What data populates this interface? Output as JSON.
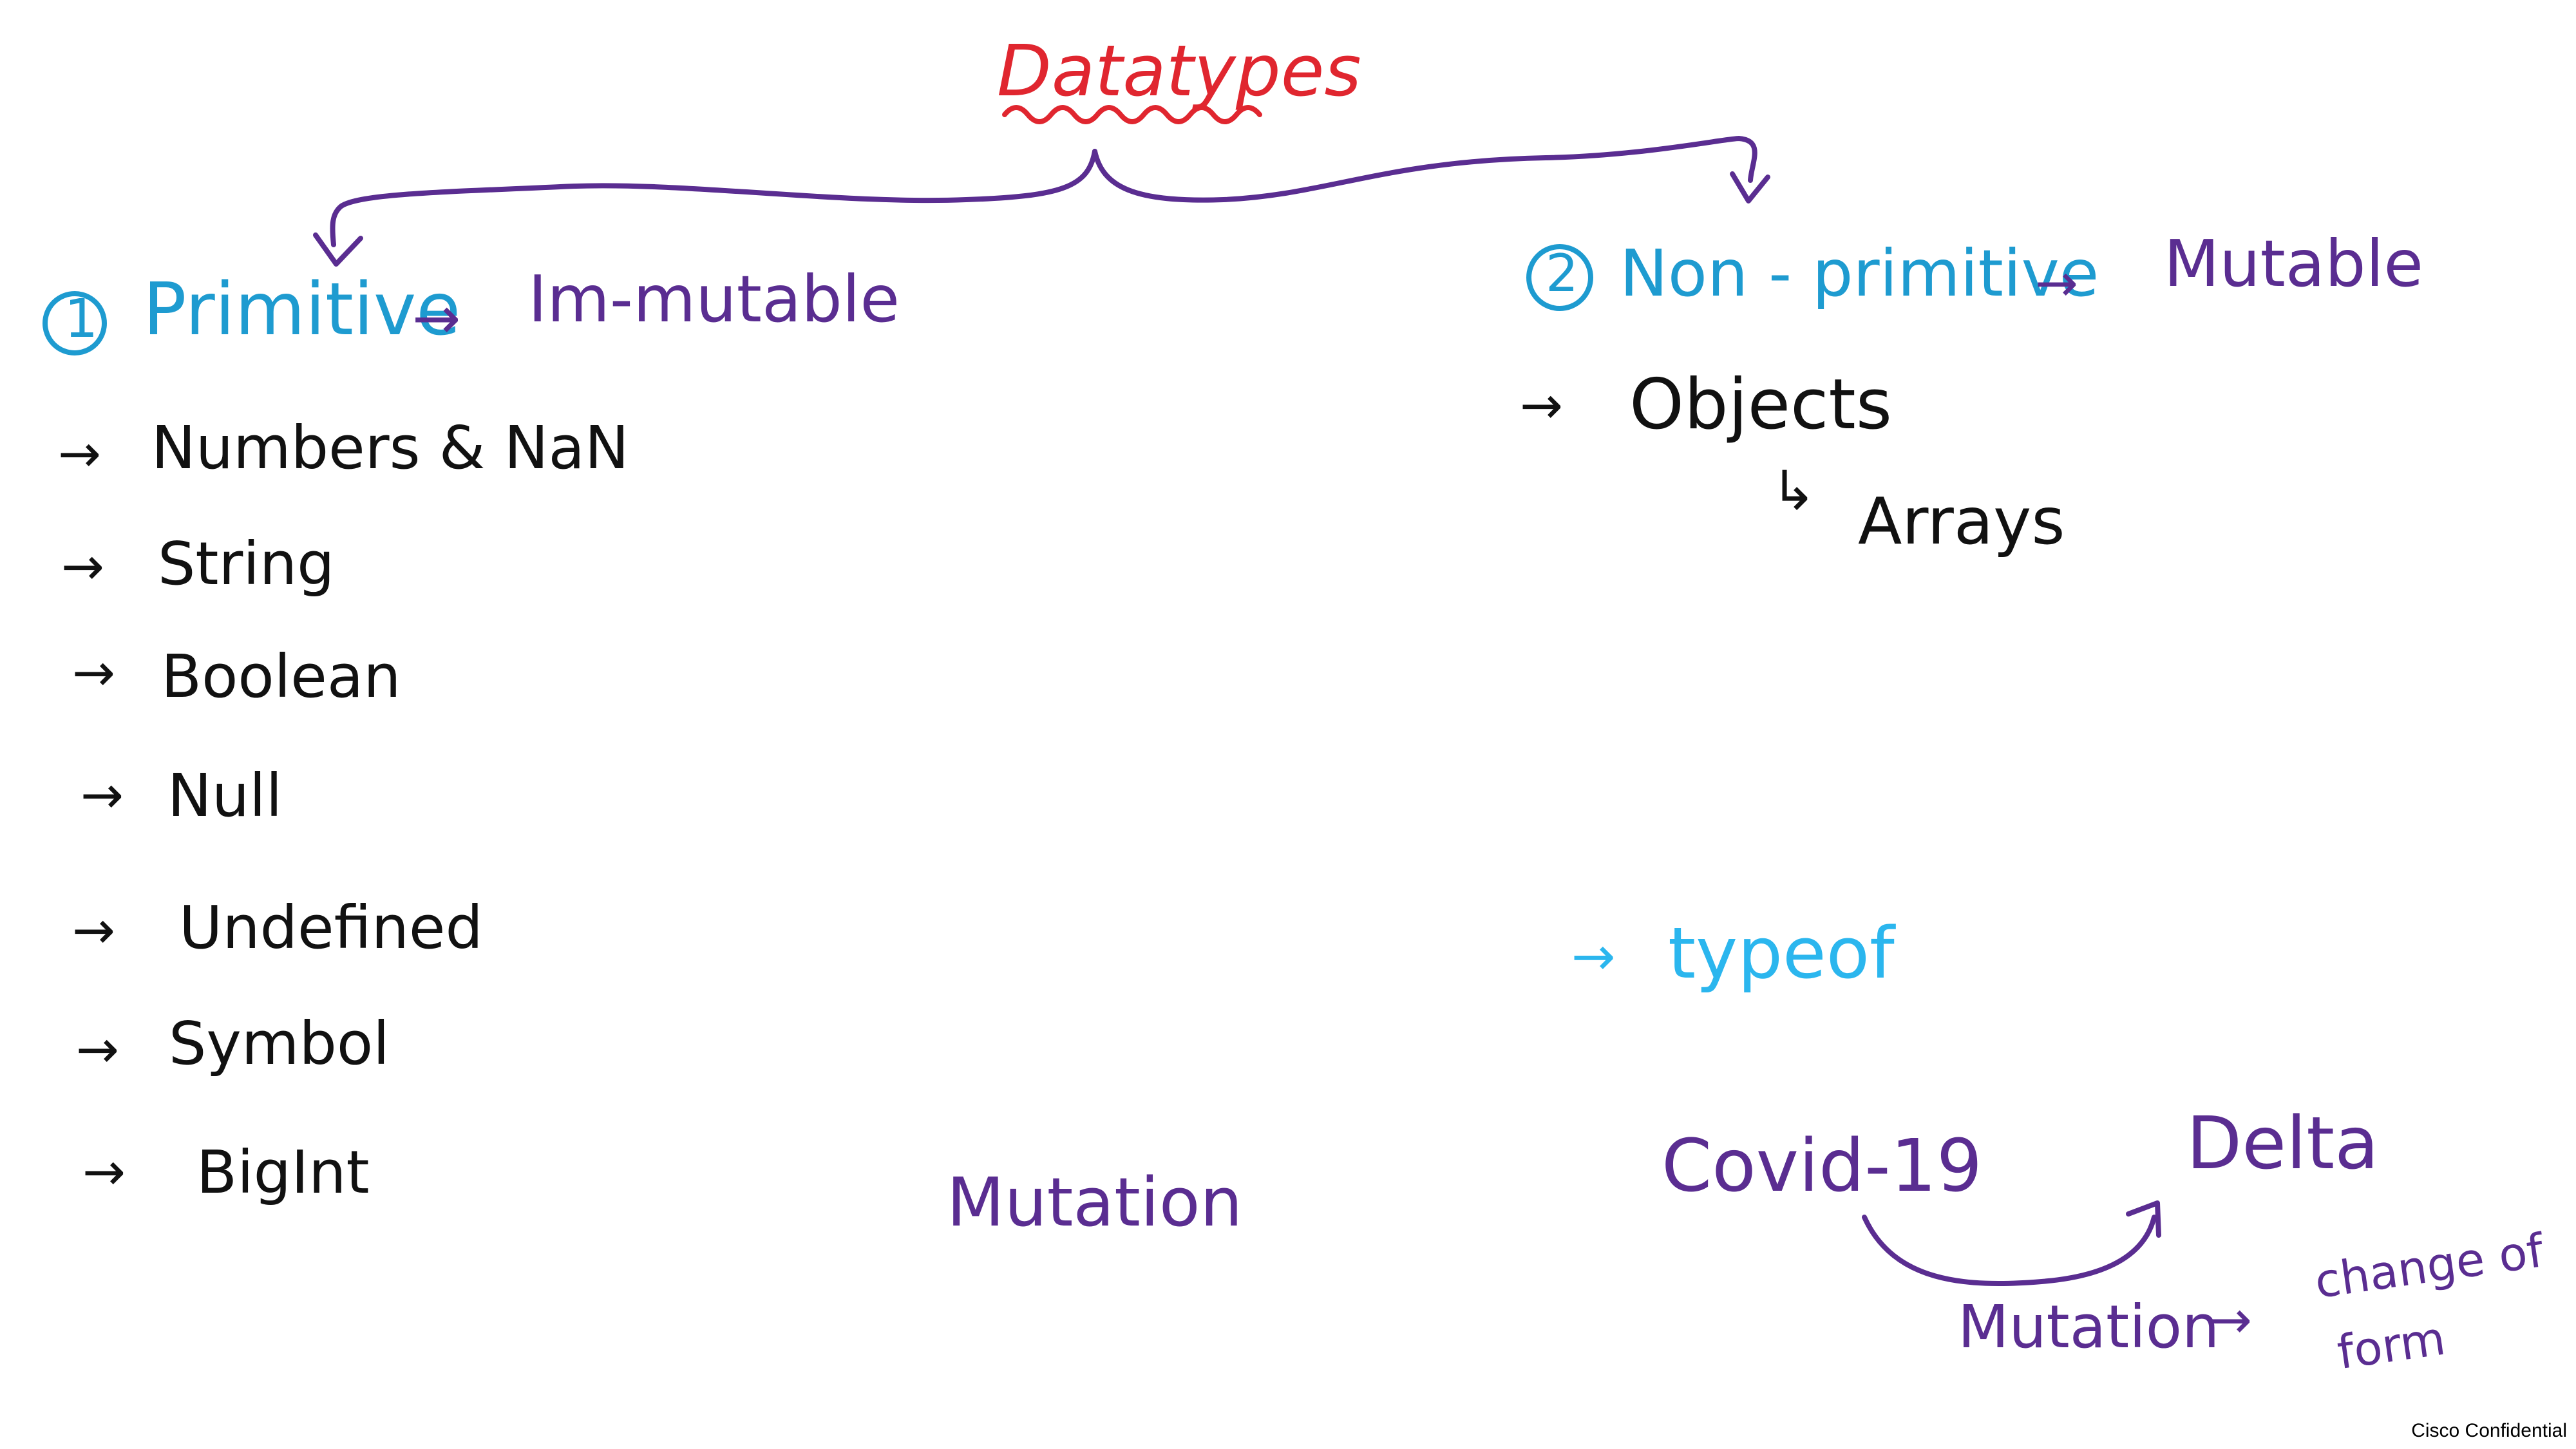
{
  "colors": {
    "title": "#e0262f",
    "blue": "#1e9bd0",
    "light_blue": "#2bb6ee",
    "purple": "#5a2d91",
    "black": "#111111"
  },
  "title": "Datatypes",
  "primitive": {
    "number": "1",
    "label": "Primitive",
    "arrow": "→",
    "property": "Im-mutable",
    "items": [
      "Numbers & NaN",
      "String",
      "Boolean",
      "Null",
      "Undefined",
      "Symbol",
      "BigInt"
    ]
  },
  "non_primitive": {
    "number": "2",
    "label": "Non - primitive",
    "arrow": "→",
    "property": "Mutable",
    "objects": "Objects",
    "sub_hook": "↳",
    "arrays": "Arrays"
  },
  "typeof": "typeof",
  "list_arrow": "→",
  "mutation_note": "Mutation",
  "example": {
    "from": "Covid-19",
    "to": "Delta",
    "mutation": "Mutation",
    "definition_line1": "change of",
    "definition_line2": "form"
  },
  "footer": "Cisco Confidential"
}
